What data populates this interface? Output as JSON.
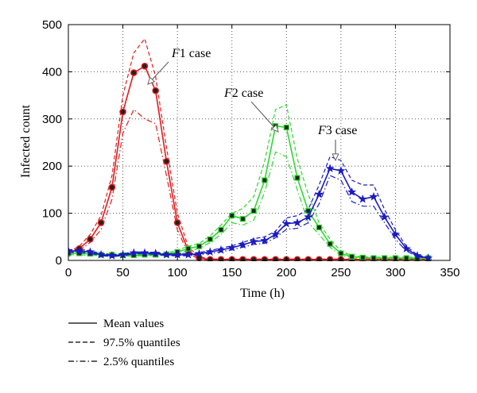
{
  "chart_data": {
    "type": "line",
    "title": "",
    "xlabel": "Time (h)",
    "ylabel": "Infected count",
    "xlim": [
      0,
      350
    ],
    "ylim": [
      0,
      500
    ],
    "xticks": [
      0,
      50,
      100,
      150,
      200,
      250,
      300,
      350
    ],
    "yticks": [
      0,
      100,
      200,
      300,
      400,
      500
    ],
    "grid": "dotted",
    "series": [
      {
        "name": "F1 case",
        "color": "#e41a1c",
        "marker": "circle",
        "x": [
          0,
          10,
          20,
          30,
          40,
          50,
          60,
          70,
          80,
          90,
          100,
          110,
          120,
          130,
          140,
          150,
          160,
          170,
          180,
          190,
          200,
          210,
          220,
          230,
          240,
          250,
          260,
          270,
          280,
          290,
          300,
          310,
          320,
          330
        ],
        "mean": [
          15,
          25,
          45,
          80,
          155,
          315,
          398,
          412,
          360,
          210,
          80,
          20,
          5,
          2,
          2,
          2,
          2,
          2,
          2,
          2,
          2,
          2,
          2,
          2,
          2,
          2,
          2,
          2,
          2,
          2,
          2,
          2,
          2,
          2
        ],
        "upper": [
          18,
          30,
          55,
          95,
          180,
          350,
          440,
          470,
          390,
          240,
          100,
          28,
          8,
          3,
          3,
          3,
          3,
          3,
          3,
          3,
          3,
          3,
          3,
          3,
          3,
          3,
          3,
          3,
          3,
          3,
          3,
          3,
          3,
          3
        ],
        "lower": [
          12,
          20,
          38,
          65,
          130,
          270,
          320,
          300,
          290,
          180,
          65,
          14,
          3,
          1,
          1,
          1,
          1,
          1,
          1,
          1,
          1,
          1,
          1,
          1,
          1,
          1,
          1,
          1,
          1,
          1,
          1,
          1,
          1,
          1
        ]
      },
      {
        "name": "F2 case",
        "color": "#2ed82e",
        "marker": "square",
        "x": [
          0,
          10,
          20,
          30,
          40,
          50,
          60,
          70,
          80,
          90,
          100,
          110,
          120,
          130,
          140,
          150,
          160,
          170,
          180,
          190,
          200,
          210,
          220,
          230,
          240,
          250,
          260,
          270,
          280,
          290,
          300,
          310,
          320,
          330
        ],
        "mean": [
          15,
          15,
          14,
          12,
          12,
          11,
          11,
          12,
          12,
          13,
          18,
          25,
          30,
          45,
          65,
          95,
          88,
          105,
          170,
          285,
          282,
          175,
          105,
          70,
          35,
          15,
          8,
          6,
          5,
          5,
          5,
          5,
          5,
          5
        ],
        "upper": [
          18,
          18,
          17,
          15,
          14,
          13,
          13,
          14,
          14,
          15,
          22,
          30,
          36,
          52,
          75,
          100,
          110,
          135,
          210,
          320,
          330,
          215,
          140,
          80,
          45,
          20,
          10,
          8,
          7,
          7,
          7,
          7,
          7,
          7
        ],
        "lower": [
          12,
          12,
          11,
          10,
          10,
          9,
          9,
          10,
          10,
          11,
          14,
          20,
          25,
          38,
          55,
          80,
          75,
          85,
          145,
          230,
          220,
          150,
          80,
          55,
          28,
          11,
          6,
          4,
          3,
          3,
          3,
          3,
          3,
          3
        ]
      },
      {
        "name": "F3 case",
        "color": "#1b1bbf",
        "marker": "star",
        "x": [
          0,
          10,
          20,
          30,
          40,
          50,
          60,
          70,
          80,
          90,
          100,
          110,
          120,
          130,
          140,
          150,
          160,
          170,
          180,
          190,
          200,
          210,
          220,
          230,
          240,
          250,
          260,
          270,
          280,
          290,
          300,
          310,
          320,
          330
        ],
        "mean": [
          20,
          20,
          18,
          12,
          10,
          12,
          16,
          16,
          15,
          12,
          12,
          12,
          14,
          18,
          22,
          27,
          33,
          40,
          42,
          55,
          78,
          80,
          92,
          140,
          195,
          190,
          145,
          130,
          135,
          92,
          55,
          25,
          10,
          5
        ],
        "upper": [
          23,
          23,
          21,
          14,
          12,
          14,
          18,
          18,
          17,
          14,
          14,
          14,
          17,
          21,
          26,
          31,
          38,
          46,
          50,
          62,
          90,
          95,
          108,
          160,
          220,
          212,
          170,
          160,
          160,
          108,
          65,
          30,
          12,
          6
        ],
        "lower": [
          17,
          17,
          15,
          10,
          8,
          10,
          14,
          14,
          13,
          10,
          10,
          10,
          12,
          15,
          18,
          23,
          28,
          34,
          36,
          48,
          66,
          68,
          80,
          120,
          180,
          170,
          125,
          115,
          115,
          80,
          45,
          20,
          8,
          4
        ]
      }
    ],
    "annotations": [
      {
        "prefix": "F",
        "suffix": "1 case",
        "x": 70,
        "y": 378
      },
      {
        "prefix": "F",
        "suffix": "2 case",
        "x": 200,
        "y": 280
      },
      {
        "prefix": "F",
        "suffix": "3 case",
        "x": 245,
        "y": 205
      }
    ],
    "legend": {
      "position": "below",
      "entries": [
        {
          "label": "Mean values",
          "style": "solid"
        },
        {
          "label": "97.5% quantiles",
          "style": "dashed"
        },
        {
          "label": "2.5% quantiles",
          "style": "dashdot"
        }
      ]
    }
  }
}
